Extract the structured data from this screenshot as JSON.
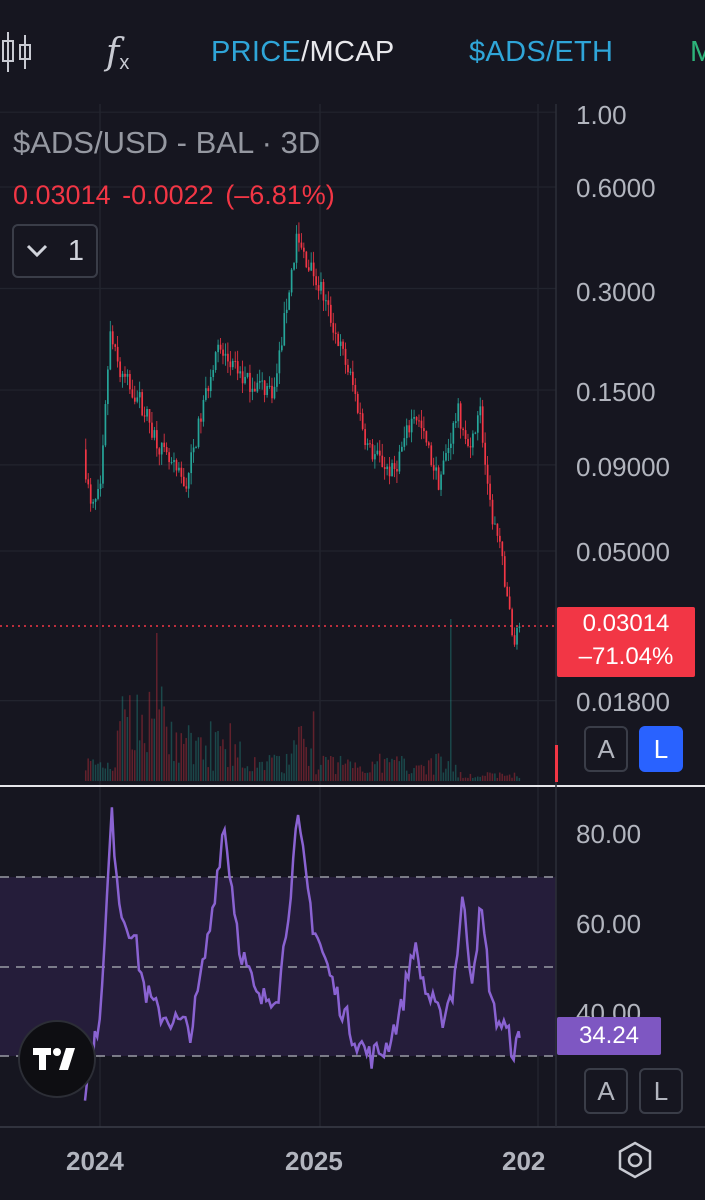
{
  "toolbar": {
    "indicators_icon": "candles-icon",
    "formula_label": "f",
    "formula_sub": "x",
    "price_label": "PRICE",
    "mcap_label": "/MCAP",
    "pair_label": "$ADS/ETH",
    "cut_label": "M"
  },
  "legend": {
    "title": "$ADS/USD - BAL · 3D",
    "last": "0.03014",
    "change": "-0.0022",
    "change_pct": "(–6.81%)",
    "collapse_count": "1"
  },
  "price_axis": [
    "1.00",
    "0.6000",
    "0.3000",
    "0.1500",
    "0.09000",
    "0.05000",
    "0.01800"
  ],
  "current_price": {
    "value": "0.03014",
    "pct": "–71.04%"
  },
  "rsi_axis": [
    "80.00",
    "60.00",
    "40.00"
  ],
  "rsi_current": "34.24",
  "scale_buttons": {
    "auto": "A",
    "log": "L"
  },
  "time_axis": [
    "2024",
    "2025",
    "202"
  ],
  "colors": {
    "background": "#161620",
    "up": "#26a69a",
    "down": "#f23645",
    "rsi": "#7e57c2",
    "accent": "#2fa5d8"
  },
  "chart_data": [
    {
      "type": "candlestick",
      "series": [
        {
          "name": "$ADS/USD - BAL · 3D"
        }
      ],
      "yscale": "log",
      "ylim": [
        0.015,
        1.0
      ],
      "last_value": 0.03014,
      "trend": [
        [
          "2023-12-07",
          0.1
        ],
        [
          "2023-12-20",
          0.065
        ],
        [
          "2024-01-05",
          0.075
        ],
        [
          "2024-01-20",
          0.22
        ],
        [
          "2024-02-05",
          0.17
        ],
        [
          "2024-03-10",
          0.14
        ],
        [
          "2024-04-20",
          0.095
        ],
        [
          "2024-05-25",
          0.078
        ],
        [
          "2024-07-15",
          0.2
        ],
        [
          "2024-09-01",
          0.16
        ],
        [
          "2024-10-20",
          0.15
        ],
        [
          "2024-11-25",
          0.42
        ],
        [
          "2025-01-05",
          0.3
        ],
        [
          "2025-02-25",
          0.16
        ],
        [
          "2025-03-25",
          0.1
        ],
        [
          "2025-05-05",
          0.085
        ],
        [
          "2025-06-10",
          0.13
        ],
        [
          "2025-07-20",
          0.08
        ],
        [
          "2025-08-20",
          0.13
        ],
        [
          "2025-09-10",
          0.095
        ],
        [
          "2025-09-25",
          0.14
        ],
        [
          "2025-10-10",
          0.07
        ],
        [
          "2025-10-25",
          0.055
        ],
        [
          "2025-11-10",
          0.038
        ],
        [
          "2025-11-20",
          0.026
        ],
        [
          "2025-11-28",
          0.03014
        ]
      ]
    },
    {
      "type": "line",
      "series": [
        {
          "name": "RSI"
        }
      ],
      "ylim": [
        20,
        90
      ],
      "reference_lines": [
        70,
        50,
        30
      ],
      "last_value": 34.24,
      "values": [
        [
          "2023-12-07",
          22
        ],
        [
          "2023-12-20",
          30
        ],
        [
          "2024-01-05",
          45
        ],
        [
          "2024-01-20",
          84
        ],
        [
          "2024-02-05",
          62
        ],
        [
          "2024-02-25",
          58
        ],
        [
          "2024-03-15",
          45
        ],
        [
          "2024-04-05",
          40
        ],
        [
          "2024-05-05",
          38
        ],
        [
          "2024-06-01",
          36
        ],
        [
          "2024-07-01",
          58
        ],
        [
          "2024-07-25",
          82
        ],
        [
          "2024-08-20",
          55
        ],
        [
          "2024-09-20",
          42
        ],
        [
          "2024-10-25",
          45
        ],
        [
          "2024-11-25",
          82
        ],
        [
          "2024-12-20",
          60
        ],
        [
          "2025-01-25",
          45
        ],
        [
          "2025-02-25",
          35
        ],
        [
          "2025-03-25",
          30
        ],
        [
          "2025-04-20",
          32
        ],
        [
          "2025-05-15",
          40
        ],
        [
          "2025-06-05",
          55
        ],
        [
          "2025-06-25",
          45
        ],
        [
          "2025-07-20",
          38
        ],
        [
          "2025-08-10",
          45
        ],
        [
          "2025-08-25",
          65
        ],
        [
          "2025-09-10",
          48
        ],
        [
          "2025-09-25",
          63
        ],
        [
          "2025-10-15",
          40
        ],
        [
          "2025-11-05",
          36
        ],
        [
          "2025-11-20",
          31
        ],
        [
          "2025-11-28",
          34.24
        ]
      ]
    }
  ]
}
